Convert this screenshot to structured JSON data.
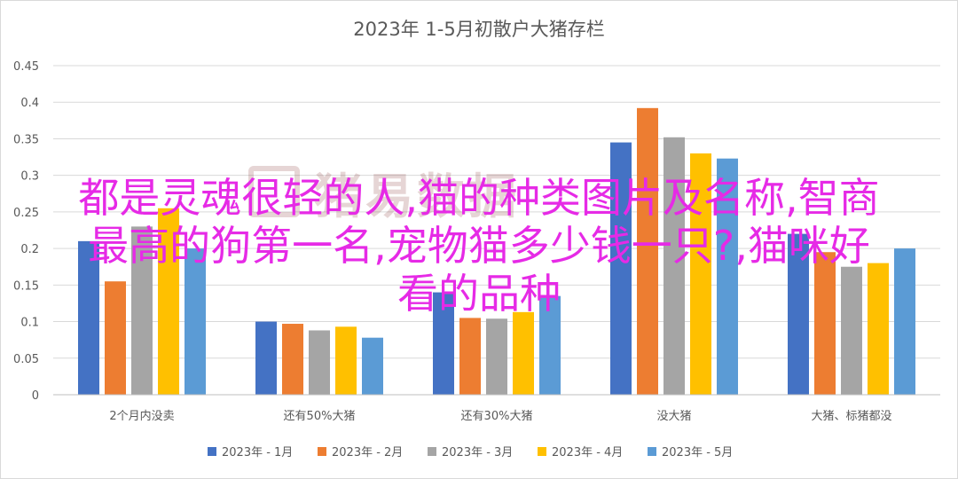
{
  "chart_data": {
    "type": "bar",
    "title": "2023年 1-5月初散户大猪存栏",
    "categories": [
      "2个月内没卖",
      "还有50%大猪",
      "还有30%大猪",
      "没大猪",
      "大猪、标猪都没"
    ],
    "series": [
      {
        "name": "2023年 - 1月",
        "color": "#4472c4",
        "values": [
          0.21,
          0.1,
          0.14,
          0.345,
          0.22
        ]
      },
      {
        "name": "2023年 - 2月",
        "color": "#ed7d31",
        "values": [
          0.155,
          0.097,
          0.105,
          0.392,
          0.195
        ]
      },
      {
        "name": "2023年 - 3月",
        "color": "#a5a5a5",
        "values": [
          0.23,
          0.088,
          0.104,
          0.352,
          0.175
        ]
      },
      {
        "name": "2023年 - 4月",
        "color": "#ffc000",
        "values": [
          0.255,
          0.093,
          0.113,
          0.33,
          0.18
        ]
      },
      {
        "name": "2023年 - 5月",
        "color": "#5b9bd5",
        "values": [
          0.2,
          0.078,
          0.135,
          0.323,
          0.2
        ]
      }
    ],
    "ylim": [
      0,
      0.45
    ],
    "yticks": [
      "0",
      "0.05",
      "0.1",
      "0.15",
      "0.2",
      "0.25",
      "0.3",
      "0.35",
      "0.4",
      "0.45"
    ],
    "grid": true,
    "legend": "bottom"
  },
  "watermark": {
    "text": "猪易数据"
  },
  "overlay": {
    "line1": "都是灵魂很轻的人,猫的种类图片及名称,智商",
    "line2": "最高的狗第一名,宠物猫多少钱一只?,猫咪好",
    "line3": "看的品种"
  }
}
